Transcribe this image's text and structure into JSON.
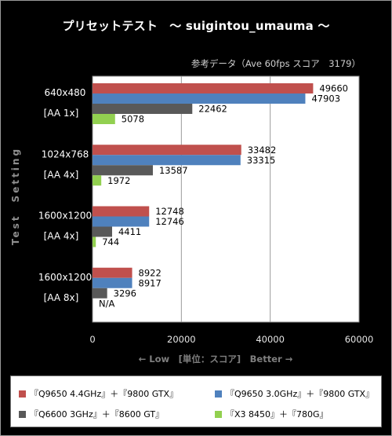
{
  "title": "プリセットテスト　～ suigintou_umauma ～",
  "subtitle": "参考データ（Ave 60fps スコア　3179）",
  "chart_data": {
    "type": "bar",
    "orientation": "horizontal",
    "categories": [
      {
        "label1": "640x480",
        "label2": "[AA 1x]"
      },
      {
        "label1": "1024x768",
        "label2": "[AA 4x]"
      },
      {
        "label1": "1600x1200",
        "label2": "[AA 4x]"
      },
      {
        "label1": "1600x1200",
        "label2": "[AA 8x]"
      }
    ],
    "series": [
      {
        "name": "『Q9650 4.4GHz』＋『9800 GTX』",
        "color": "#c0504d",
        "values": [
          49660,
          33482,
          12748,
          8922
        ],
        "labels": [
          "49660",
          "33482",
          "12748",
          "8922"
        ]
      },
      {
        "name": "『Q9650 3.0GHz』＋『9800 GTX』",
        "color": "#4f81bd",
        "values": [
          47903,
          33315,
          12746,
          8917
        ],
        "labels": [
          "47903",
          "33315",
          "12746",
          "8917"
        ]
      },
      {
        "name": "『Q6600 3GHz』＋『8600 GT』",
        "color": "#595959",
        "values": [
          22462,
          13587,
          4411,
          3296
        ],
        "labels": [
          "22462",
          "13587",
          "4411",
          "3296"
        ]
      },
      {
        "name": "『X3 8450』＋『780G』",
        "color": "#92d050",
        "values": [
          5078,
          1972,
          744,
          null
        ],
        "labels": [
          "5078",
          "1972",
          "744",
          "N/A"
        ]
      }
    ],
    "xlim": [
      0,
      60000
    ],
    "xticks": [
      "0",
      "20000",
      "40000",
      "60000"
    ],
    "xlabel": "← Low　[単位：スコア]　Better →",
    "ylabel": "Test　Setting",
    "grid": true,
    "legend_position": "bottom"
  }
}
